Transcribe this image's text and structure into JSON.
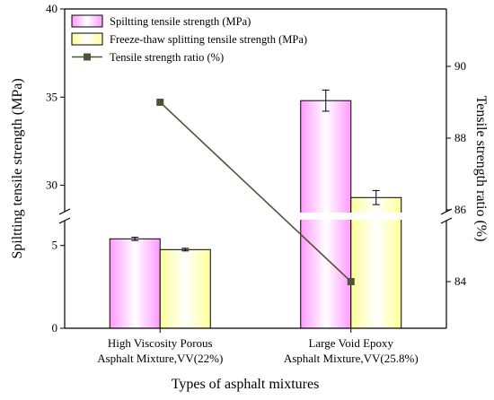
{
  "chart_data": {
    "type": "bar",
    "categories": [
      [
        "High Viscosity Porous",
        "Asphalt Mixture,VV(22%)"
      ],
      [
        "Large Void Epoxy",
        "Asphalt Mixture,VV(25.8%)"
      ]
    ],
    "series": [
      {
        "name": "Spiltting tensile strength (MPa)",
        "type": "bar",
        "axis": "left",
        "color": "#ff99ff",
        "values": [
          5.4,
          34.8
        ],
        "errors": [
          0.1,
          0.6
        ]
      },
      {
        "name": "Freeze-thaw splitting tensile strength (MPa)",
        "type": "bar",
        "axis": "left",
        "color": "#ffff99",
        "values": [
          4.75,
          29.3
        ],
        "errors": [
          0.08,
          0.4
        ]
      },
      {
        "name": "Tensile strength ratio (%)",
        "type": "line",
        "axis": "right",
        "color": "#4f5436",
        "values": [
          89.0,
          84.0
        ]
      }
    ],
    "xlabel": "Types of asphalt mixtures",
    "ylabel": "Spiltting tensile strength (MPa)",
    "y2label": "Tensile strength ratio (%)",
    "y_lower_ticks": [
      "0",
      "5"
    ],
    "y_upper_ticks": [
      "30",
      "35",
      "40"
    ],
    "y2_ticks": [
      "84",
      "86",
      "88",
      "90"
    ],
    "ylim_lower": [
      0,
      6.5
    ],
    "ylim_upper": [
      28.5,
      40
    ],
    "y2lim": [
      82.7,
      91.6
    ],
    "axis_break": true,
    "legend_position": "top-left"
  }
}
